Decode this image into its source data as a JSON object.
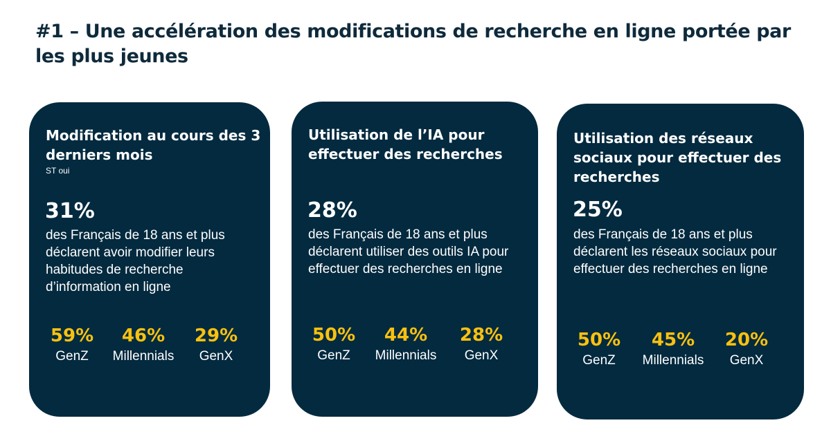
{
  "title": "#1 – Une accélération des modifications de recherche en ligne portée par les plus jeunes",
  "colors": {
    "card_background": "#032a3f",
    "accent_yellow": "#f9c10f",
    "title_color": "#0e2a3b"
  },
  "cards": [
    {
      "title": "Modification au cours des 3 derniers mois",
      "subtitle": "ST oui",
      "big_stat": "31%",
      "description": "des Français de 18 ans et plus déclarent avoir modifier leurs habitudes de recherche d’information en ligne",
      "generations": [
        {
          "pct": "59%",
          "label": "GenZ"
        },
        {
          "pct": "46%",
          "label": "Millennials"
        },
        {
          "pct": "29%",
          "label": "GenX"
        }
      ]
    },
    {
      "title": "Utilisation de l’IA pour effectuer des recherches",
      "subtitle": "",
      "big_stat": "28%",
      "description": "des Français de 18 ans et plus déclarent utiliser des outils IA pour effectuer des recherches en ligne",
      "generations": [
        {
          "pct": "50%",
          "label": "GenZ"
        },
        {
          "pct": "44%",
          "label": "Millennials"
        },
        {
          "pct": "28%",
          "label": "GenX"
        }
      ]
    },
    {
      "title": "Utilisation des réseaux sociaux pour effectuer des recherches",
      "subtitle": "",
      "big_stat": "25%",
      "description": "des Français de 18 ans et plus déclarent les réseaux sociaux pour effectuer des recherches en ligne",
      "generations": [
        {
          "pct": "50%",
          "label": "GenZ"
        },
        {
          "pct": "45%",
          "label": "Millennials"
        },
        {
          "pct": "20%",
          "label": "GenX"
        }
      ]
    }
  ]
}
